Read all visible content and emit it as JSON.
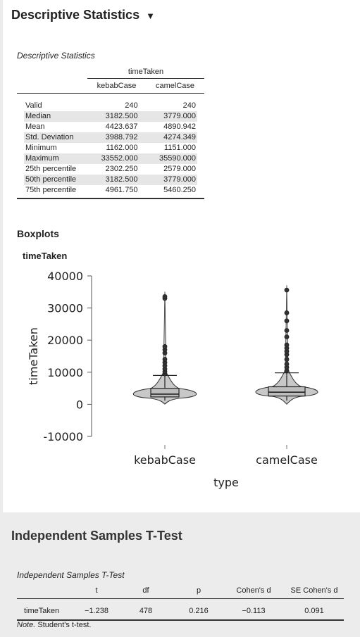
{
  "section1": {
    "title": "Descriptive Statistics",
    "title_arrow": "▼",
    "table_caption": "Descriptive Statistics",
    "group_header": "timeTaken",
    "columns": [
      "kebabCase",
      "camelCase"
    ],
    "rows": [
      {
        "label": "Valid",
        "v": [
          "240",
          "240"
        ]
      },
      {
        "label": "Median",
        "v": [
          "3182.500",
          "3779.000"
        ]
      },
      {
        "label": "Mean",
        "v": [
          "4423.637",
          "4890.942"
        ]
      },
      {
        "label": "Std. Deviation",
        "v": [
          "3988.792",
          "4274.349"
        ]
      },
      {
        "label": "Minimum",
        "v": [
          "1162.000",
          "1151.000"
        ]
      },
      {
        "label": "Maximum",
        "v": [
          "33552.000",
          "35590.000"
        ]
      },
      {
        "label": "25th percentile",
        "v": [
          "2302.250",
          "2579.000"
        ]
      },
      {
        "label": "50th percentile",
        "v": [
          "3182.500",
          "3779.000"
        ]
      },
      {
        "label": "75th percentile",
        "v": [
          "4961.750",
          "5460.250"
        ]
      }
    ],
    "boxplots_heading": "Boxplots",
    "plot_title": "timeTaken"
  },
  "chart_data": {
    "type": "boxplot-violin",
    "title": "timeTaken",
    "xlabel": "type",
    "ylabel": "timeTaken",
    "ylim": [
      -10000,
      40000
    ],
    "yticks": [
      -10000,
      0,
      10000,
      20000,
      30000,
      40000
    ],
    "categories": [
      "kebabCase",
      "camelCase"
    ],
    "boxes": [
      {
        "q1": 2302.25,
        "median": 3182.5,
        "q3": 4961.75,
        "whisker_low": 1162,
        "whisker_high": 9000,
        "outliers": [
          9500,
          10200,
          11000,
          12000,
          13000,
          14000,
          16000,
          17000,
          18000,
          33000,
          33552
        ]
      },
      {
        "q1": 2579,
        "median": 3779,
        "q3": 5460.25,
        "whisker_low": 1151,
        "whisker_high": 9800,
        "outliers": [
          10500,
          11500,
          12500,
          14000,
          15500,
          16500,
          17500,
          18500,
          21000,
          23000,
          26000,
          28500,
          35590
        ]
      }
    ]
  },
  "section2": {
    "title": "Independent Samples T-Test",
    "table_caption": "Independent Samples T-Test",
    "columns": [
      "",
      "t",
      "df",
      "p",
      "Cohen's d",
      "SE Cohen's d"
    ],
    "row": [
      "timeTaken",
      "−1.238",
      "478",
      "0.216",
      "−0.113",
      "0.091"
    ],
    "note_label": "Note.",
    "note_text": " Student's t-test."
  }
}
